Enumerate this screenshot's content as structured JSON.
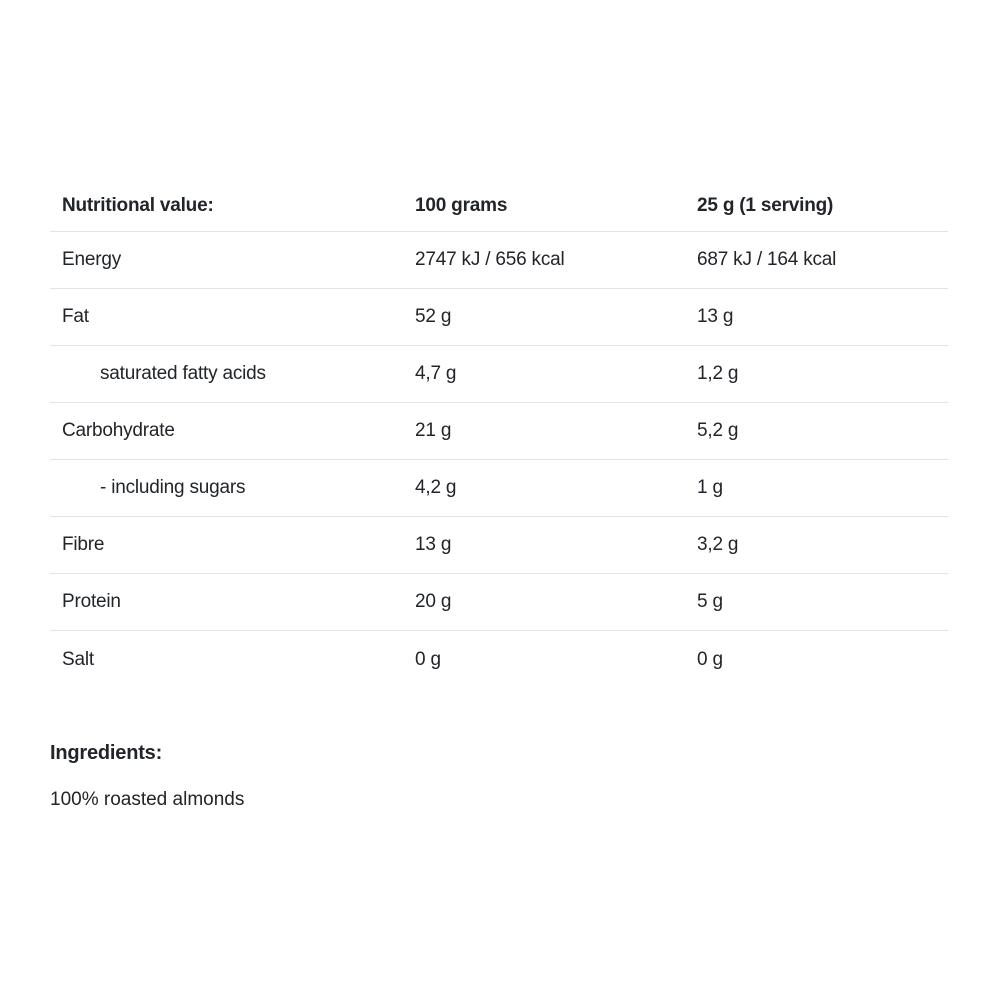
{
  "colors": {
    "text": "#212529",
    "divider": "#e4e4e4",
    "background": "#ffffff"
  },
  "nutrition_table": {
    "headers": {
      "label": "Nutritional value:",
      "per_100g": "100 grams",
      "per_serving": "25 g (1 serving)"
    },
    "rows": [
      {
        "label": "Energy",
        "per_100g": "2747 kJ / 656 kcal",
        "per_serving": "687 kJ / 164 kcal",
        "indent": false
      },
      {
        "label": "Fat",
        "per_100g": "52 g",
        "per_serving": "13 g",
        "indent": false
      },
      {
        "label": "saturated fatty acids",
        "per_100g": "4,7 g",
        "per_serving": "1,2 g",
        "indent": true
      },
      {
        "label": "Carbohydrate",
        "per_100g": "21 g",
        "per_serving": "5,2 g",
        "indent": false
      },
      {
        "label": "- including sugars",
        "per_100g": "4,2 g",
        "per_serving": "1 g",
        "indent": true
      },
      {
        "label": "Fibre",
        "per_100g": "13 g",
        "per_serving": "3,2 g",
        "indent": false
      },
      {
        "label": "Protein",
        "per_100g": "20 g",
        "per_serving": "5 g",
        "indent": false
      },
      {
        "label": "Salt",
        "per_100g": "0 g",
        "per_serving": "0 g",
        "indent": false
      }
    ]
  },
  "ingredients": {
    "heading": "Ingredients:",
    "text": "100% roasted almonds"
  }
}
